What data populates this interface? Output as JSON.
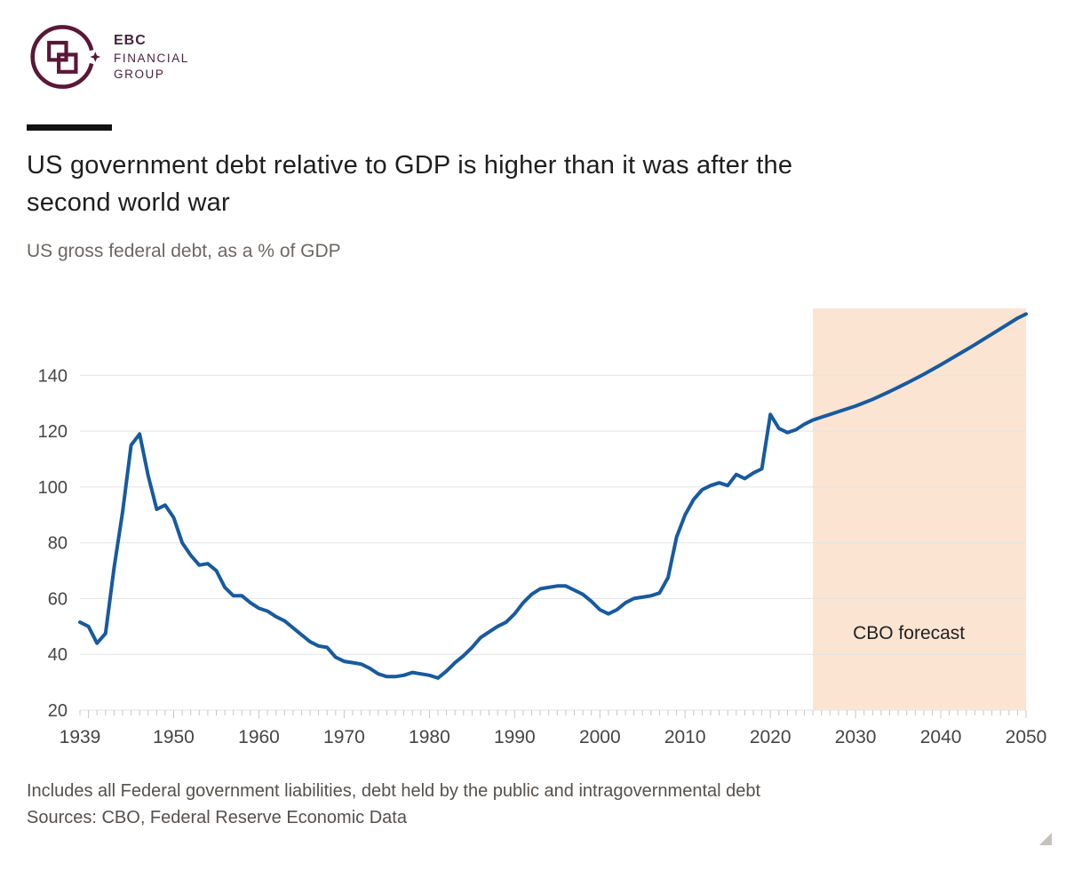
{
  "brand": {
    "abbr": "EBC",
    "line2": "FINANCIAL",
    "line3": "GROUP",
    "brand_color": "#5a1738"
  },
  "header": {
    "title_line1": "US government debt relative to GDP is higher than it was after the",
    "title_line2": "second world war",
    "subtitle": "US gross federal debt, as a % of GDP"
  },
  "chart_data": {
    "type": "line",
    "title": "US government debt relative to GDP is higher than it was after the second world war",
    "subtitle": "US gross federal debt, as a % of GDP",
    "xlabel": "",
    "ylabel": "% of GDP",
    "xlim": [
      1939,
      2050
    ],
    "ylim": [
      20,
      164
    ],
    "x_ticks": [
      1939,
      1950,
      1960,
      1970,
      1980,
      1990,
      2000,
      2010,
      2020,
      2030,
      2040,
      2050
    ],
    "y_ticks": [
      20,
      40,
      60,
      80,
      100,
      120,
      140
    ],
    "grid": "horizontal",
    "legend": "none",
    "line_color": "#175a9f",
    "forecast": {
      "start": 2025,
      "end": 2050,
      "label": "CBO forecast",
      "fill": "#fbe4d2"
    },
    "series": [
      {
        "name": "US gross federal debt, as a % of GDP",
        "points": [
          [
            1939,
            51.5
          ],
          [
            1940,
            50
          ],
          [
            1941,
            44
          ],
          [
            1942,
            47.5
          ],
          [
            1943,
            71
          ],
          [
            1944,
            91
          ],
          [
            1945,
            115
          ],
          [
            1946,
            119
          ],
          [
            1947,
            104
          ],
          [
            1948,
            92
          ],
          [
            1949,
            93.5
          ],
          [
            1950,
            89
          ],
          [
            1951,
            80
          ],
          [
            1952,
            75.5
          ],
          [
            1953,
            72
          ],
          [
            1954,
            72.5
          ],
          [
            1955,
            70
          ],
          [
            1956,
            64
          ],
          [
            1957,
            61
          ],
          [
            1958,
            61
          ],
          [
            1959,
            58.5
          ],
          [
            1960,
            56.5
          ],
          [
            1961,
            55.5
          ],
          [
            1962,
            53.5
          ],
          [
            1963,
            52
          ],
          [
            1964,
            49.5
          ],
          [
            1965,
            47
          ],
          [
            1966,
            44.5
          ],
          [
            1967,
            43
          ],
          [
            1968,
            42.5
          ],
          [
            1969,
            39
          ],
          [
            1970,
            37.5
          ],
          [
            1971,
            37
          ],
          [
            1972,
            36.5
          ],
          [
            1973,
            35
          ],
          [
            1974,
            33
          ],
          [
            1975,
            32
          ],
          [
            1976,
            32
          ],
          [
            1977,
            32.5
          ],
          [
            1978,
            33.5
          ],
          [
            1979,
            33
          ],
          [
            1980,
            32.5
          ],
          [
            1981,
            31.5
          ],
          [
            1982,
            34
          ],
          [
            1983,
            37
          ],
          [
            1984,
            39.5
          ],
          [
            1985,
            42.5
          ],
          [
            1986,
            46
          ],
          [
            1987,
            48
          ],
          [
            1988,
            50
          ],
          [
            1989,
            51.5
          ],
          [
            1990,
            54.5
          ],
          [
            1991,
            58.5
          ],
          [
            1992,
            61.5
          ],
          [
            1993,
            63.5
          ],
          [
            1994,
            64
          ],
          [
            1995,
            64.5
          ],
          [
            1996,
            64.5
          ],
          [
            1997,
            63
          ],
          [
            1998,
            61.5
          ],
          [
            1999,
            59
          ],
          [
            2000,
            56
          ],
          [
            2001,
            54.5
          ],
          [
            2002,
            56
          ],
          [
            2003,
            58.5
          ],
          [
            2004,
            60
          ],
          [
            2005,
            60.5
          ],
          [
            2006,
            61
          ],
          [
            2007,
            62
          ],
          [
            2008,
            67.5
          ],
          [
            2009,
            82
          ],
          [
            2010,
            90
          ],
          [
            2011,
            95.5
          ],
          [
            2012,
            99
          ],
          [
            2013,
            100.5
          ],
          [
            2014,
            101.5
          ],
          [
            2015,
            100.5
          ],
          [
            2016,
            104.5
          ],
          [
            2017,
            103
          ],
          [
            2018,
            105
          ],
          [
            2019,
            106.5
          ],
          [
            2020,
            126
          ],
          [
            2021,
            121
          ],
          [
            2022,
            119.5
          ],
          [
            2023,
            120.5
          ],
          [
            2024,
            122.5
          ],
          [
            2025,
            124
          ],
          [
            2026,
            125
          ],
          [
            2027,
            126
          ],
          [
            2028,
            127
          ],
          [
            2029,
            128
          ],
          [
            2030,
            129
          ],
          [
            2031,
            130.2
          ],
          [
            2032,
            131.4
          ],
          [
            2033,
            132.8
          ],
          [
            2034,
            134.2
          ],
          [
            2035,
            135.7
          ],
          [
            2036,
            137.2
          ],
          [
            2037,
            138.8
          ],
          [
            2038,
            140.4
          ],
          [
            2039,
            142.1
          ],
          [
            2040,
            143.8
          ],
          [
            2041,
            145.6
          ],
          [
            2042,
            147.4
          ],
          [
            2043,
            149.2
          ],
          [
            2044,
            151
          ],
          [
            2045,
            152.9
          ],
          [
            2046,
            154.8
          ],
          [
            2047,
            156.7
          ],
          [
            2048,
            158.6
          ],
          [
            2049,
            160.5
          ],
          [
            2050,
            162
          ]
        ]
      }
    ]
  },
  "footer": {
    "note": "Includes all Federal government liabilities, debt held by the public and intragovernmental debt",
    "sources": "Sources: CBO, Federal Reserve Economic Data"
  }
}
